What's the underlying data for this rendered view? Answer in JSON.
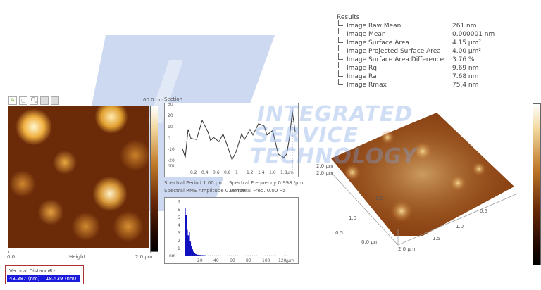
{
  "results": {
    "title": "Results",
    "rows": [
      {
        "label": "Image Raw Mean",
        "value": "261 nm"
      },
      {
        "label": "Image Mean",
        "value": "0.000001 nm"
      },
      {
        "label": "Image Surface Area",
        "value": "4.15 µm²"
      },
      {
        "label": "Image Projected Surface Area",
        "value": "4.00 µm²"
      },
      {
        "label": "Image Surface Area Difference",
        "value": "3.76 %"
      },
      {
        "label": "Image Rq",
        "value": "9.69 nm"
      },
      {
        "label": "Image Ra",
        "value": "7.68 nm"
      },
      {
        "label": "Image Rmax",
        "value": "75.4 nm"
      }
    ]
  },
  "toolbar": {
    "icons": [
      "pencil-icon",
      "circle-icon",
      "magnifier-icon",
      "grid-icon",
      "grid-icon"
    ]
  },
  "height_image": {
    "scale_max": "60.0 nm",
    "x_start": "0.0",
    "x_label": "Height",
    "x_end": "2.0 µm"
  },
  "measure": {
    "col1": "Vertical Distance",
    "col2": "Rz",
    "val1": "43.387 (nm)",
    "val2": "18.439 (nm)",
    "highlight": "#1a1adc"
  },
  "section": {
    "title": "Section",
    "y_ticks": [
      "30",
      "20",
      "10",
      "0",
      "-10",
      "-20"
    ],
    "y_unit": "nm",
    "x_ticks": [
      "0.2",
      "0.4",
      "0.6",
      "0.8",
      "1",
      "1.2",
      "1.4",
      "1.6",
      "1.8"
    ],
    "x_unit": "µm",
    "profile": [
      [
        0,
        -10
      ],
      [
        0.05,
        -18
      ],
      [
        0.1,
        7
      ],
      [
        0.15,
        -1
      ],
      [
        0.25,
        -2
      ],
      [
        0.35,
        15
      ],
      [
        0.45,
        5
      ],
      [
        0.5,
        -3
      ],
      [
        0.55,
        0
      ],
      [
        0.65,
        -4
      ],
      [
        0.72,
        3
      ],
      [
        0.8,
        -8
      ],
      [
        0.88,
        -20
      ],
      [
        0.95,
        -13
      ],
      [
        1.0,
        -5
      ],
      [
        1.05,
        3
      ],
      [
        1.1,
        -2
      ],
      [
        1.2,
        7
      ],
      [
        1.25,
        2
      ],
      [
        1.35,
        12
      ],
      [
        1.45,
        10
      ],
      [
        1.5,
        2
      ],
      [
        1.6,
        6
      ],
      [
        1.7,
        -15
      ],
      [
        1.8,
        -18
      ],
      [
        1.85,
        -15
      ],
      [
        1.9,
        0
      ],
      [
        1.95,
        23
      ],
      [
        2.0,
        5
      ]
    ]
  },
  "spectral": {
    "period": "Spectral Period 1.00 µm",
    "frequency": "Spectral Frequency 0.998 /µm",
    "rms": "Spectral RMS Amplitude 0.08 nm",
    "temporal": "Temporal Freq. 0.00 Hz",
    "y_ticks": [
      "7",
      "6",
      "5",
      "4",
      "3",
      "2",
      "1"
    ],
    "y_unit": "nm",
    "x_ticks": [
      "20",
      "40",
      "60",
      "80",
      "100",
      "120"
    ],
    "x_unit": "/µm",
    "bars": [
      6.1,
      5.2,
      3.3,
      2.6,
      3.0,
      1.8,
      1.2,
      0.8,
      0.5,
      0.3,
      0.2,
      0.15,
      0.1,
      0.1,
      0.08,
      0.06,
      0.05,
      0.05,
      0.04,
      0.03
    ],
    "bar_color": "#1010c0"
  },
  "view3d": {
    "labels": [
      "2.0 µm",
      "2.0 µm",
      "1.5",
      "1.0",
      "0.5",
      "0.0 µm",
      "1.5",
      "1.0",
      "0.5",
      "2.0 µm"
    ]
  },
  "watermark": {
    "line1": "INTEGRATED",
    "line2": "SERVICE",
    "line3": "TECHNOLOGY",
    "logo": "iST"
  }
}
